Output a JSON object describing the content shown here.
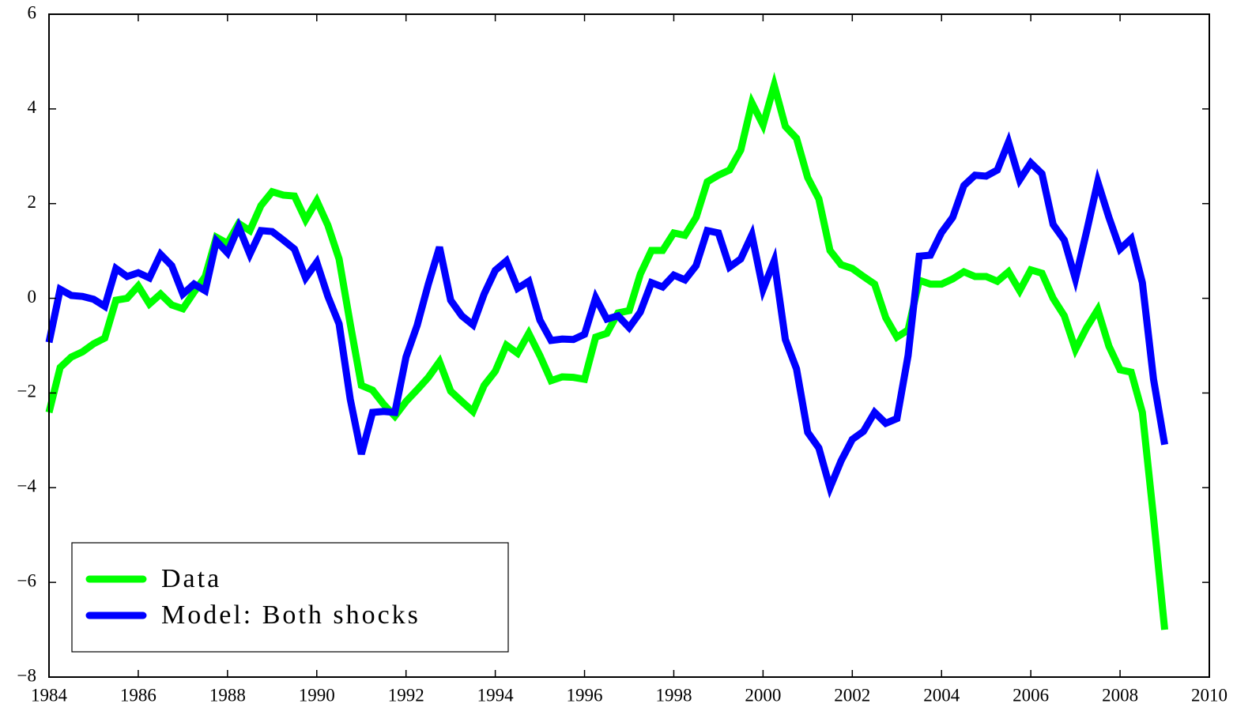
{
  "chart_data": {
    "type": "line",
    "x": [
      1984,
      1984.25,
      1984.5,
      1984.75,
      1985,
      1985.25,
      1985.5,
      1985.75,
      1986,
      1986.25,
      1986.5,
      1986.75,
      1987,
      1987.25,
      1987.5,
      1987.75,
      1988,
      1988.25,
      1988.5,
      1988.75,
      1989,
      1989.25,
      1989.5,
      1989.75,
      1990,
      1990.25,
      1990.5,
      1990.75,
      1991,
      1991.25,
      1991.5,
      1991.75,
      1992,
      1992.25,
      1992.5,
      1992.75,
      1993,
      1993.25,
      1993.5,
      1993.75,
      1994,
      1994.25,
      1994.5,
      1994.75,
      1995,
      1995.25,
      1995.5,
      1995.75,
      1996,
      1996.25,
      1996.5,
      1996.75,
      1997,
      1997.25,
      1997.5,
      1997.75,
      1998,
      1998.25,
      1998.5,
      1998.75,
      1999,
      1999.25,
      1999.5,
      1999.75,
      2000,
      2000.25,
      2000.5,
      2000.75,
      2001,
      2001.25,
      2001.5,
      2001.75,
      2002,
      2002.25,
      2002.5,
      2002.75,
      2003,
      2003.25,
      2003.5,
      2003.75,
      2004,
      2004.25,
      2004.5,
      2004.75,
      2005,
      2005.25,
      2005.5,
      2005.75,
      2006,
      2006.25,
      2006.5,
      2006.75,
      2007,
      2007.25,
      2007.5,
      2007.75,
      2008,
      2008.25,
      2008.5,
      2008.75,
      2009
    ],
    "series": [
      {
        "name": "Data",
        "color": "#00ff00",
        "values": [
          -2.41,
          -1.46,
          -1.24,
          -1.13,
          -0.96,
          -0.84,
          -0.04,
          0.0,
          0.26,
          -0.12,
          0.09,
          -0.14,
          -0.22,
          0.13,
          0.46,
          1.29,
          1.16,
          1.58,
          1.43,
          1.96,
          2.25,
          2.18,
          2.16,
          1.66,
          2.06,
          1.54,
          0.83,
          -0.54,
          -1.84,
          -1.94,
          -2.24,
          -2.49,
          -2.18,
          -1.93,
          -1.67,
          -1.34,
          -1.96,
          -2.18,
          -2.39,
          -1.84,
          -1.54,
          -0.99,
          -1.16,
          -0.74,
          -1.21,
          -1.74,
          -1.66,
          -1.67,
          -1.71,
          -0.82,
          -0.74,
          -0.31,
          -0.26,
          0.51,
          1.01,
          1.01,
          1.38,
          1.33,
          1.71,
          2.46,
          2.6,
          2.71,
          3.13,
          4.13,
          3.66,
          4.5,
          3.63,
          3.38,
          2.55,
          2.1,
          1.01,
          0.71,
          0.63,
          0.46,
          0.3,
          -0.41,
          -0.82,
          -0.67,
          0.38,
          0.3,
          0.3,
          0.41,
          0.56,
          0.46,
          0.46,
          0.36,
          0.56,
          0.16,
          0.6,
          0.53,
          0.0,
          -0.37,
          -1.08,
          -0.62,
          -0.24,
          -1.01,
          -1.51,
          -1.56,
          -2.41,
          -4.63,
          -7.0
        ]
      },
      {
        "name": "Model: Both shocks",
        "color": "#0000ff",
        "values": [
          -0.93,
          0.19,
          0.06,
          0.04,
          -0.02,
          -0.17,
          0.63,
          0.46,
          0.54,
          0.43,
          0.93,
          0.69,
          0.09,
          0.3,
          0.16,
          1.21,
          0.96,
          1.51,
          0.93,
          1.43,
          1.41,
          1.23,
          1.04,
          0.43,
          0.76,
          0.04,
          -0.54,
          -2.13,
          -3.29,
          -2.41,
          -2.39,
          -2.41,
          -1.24,
          -0.57,
          0.3,
          1.08,
          -0.04,
          -0.37,
          -0.56,
          0.09,
          0.59,
          0.79,
          0.21,
          0.36,
          -0.46,
          -0.89,
          -0.86,
          -0.87,
          -0.76,
          0.01,
          -0.44,
          -0.37,
          -0.62,
          -0.29,
          0.33,
          0.24,
          0.49,
          0.39,
          0.69,
          1.43,
          1.38,
          0.66,
          0.83,
          1.34,
          0.19,
          0.79,
          -0.87,
          -1.49,
          -2.83,
          -3.16,
          -4.0,
          -3.43,
          -2.98,
          -2.81,
          -2.41,
          -2.64,
          -2.54,
          -1.21,
          0.89,
          0.91,
          1.39,
          1.71,
          2.38,
          2.6,
          2.58,
          2.71,
          3.3,
          2.5,
          2.86,
          2.63,
          1.56,
          1.23,
          0.41,
          1.41,
          2.46,
          1.71,
          1.04,
          1.26,
          0.33,
          -1.71,
          -3.09
        ]
      }
    ],
    "xlim": [
      1984,
      2010
    ],
    "xticks": [
      1984,
      1986,
      1988,
      1990,
      1992,
      1994,
      1996,
      1998,
      2000,
      2002,
      2004,
      2006,
      2008,
      2010
    ],
    "ylim": [
      -8,
      6
    ],
    "yticks": [
      {
        "value": -8,
        "label": "−8"
      },
      {
        "value": -6,
        "label": "−6"
      },
      {
        "value": -4,
        "label": "−4"
      },
      {
        "value": -2,
        "label": "−2"
      },
      0,
      2,
      4,
      6
    ],
    "legend": "lower left"
  }
}
